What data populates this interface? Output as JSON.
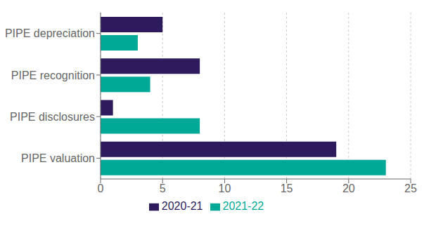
{
  "chart_data": {
    "type": "bar",
    "orientation": "horizontal",
    "categories": [
      "PIPE valuation",
      "PIPE disclosures",
      "PIPE recognition",
      "PIPE depreciation"
    ],
    "series": [
      {
        "name": "2020-21",
        "color": "#2d1b5e",
        "values": [
          19,
          1,
          8,
          5
        ]
      },
      {
        "name": "2021-22",
        "color": "#00a896",
        "values": [
          23,
          8,
          4,
          3
        ]
      }
    ],
    "xlim": [
      0,
      25
    ],
    "xticks": [
      0,
      5,
      10,
      15,
      20,
      25
    ],
    "grid": true,
    "legend": "bottom"
  }
}
